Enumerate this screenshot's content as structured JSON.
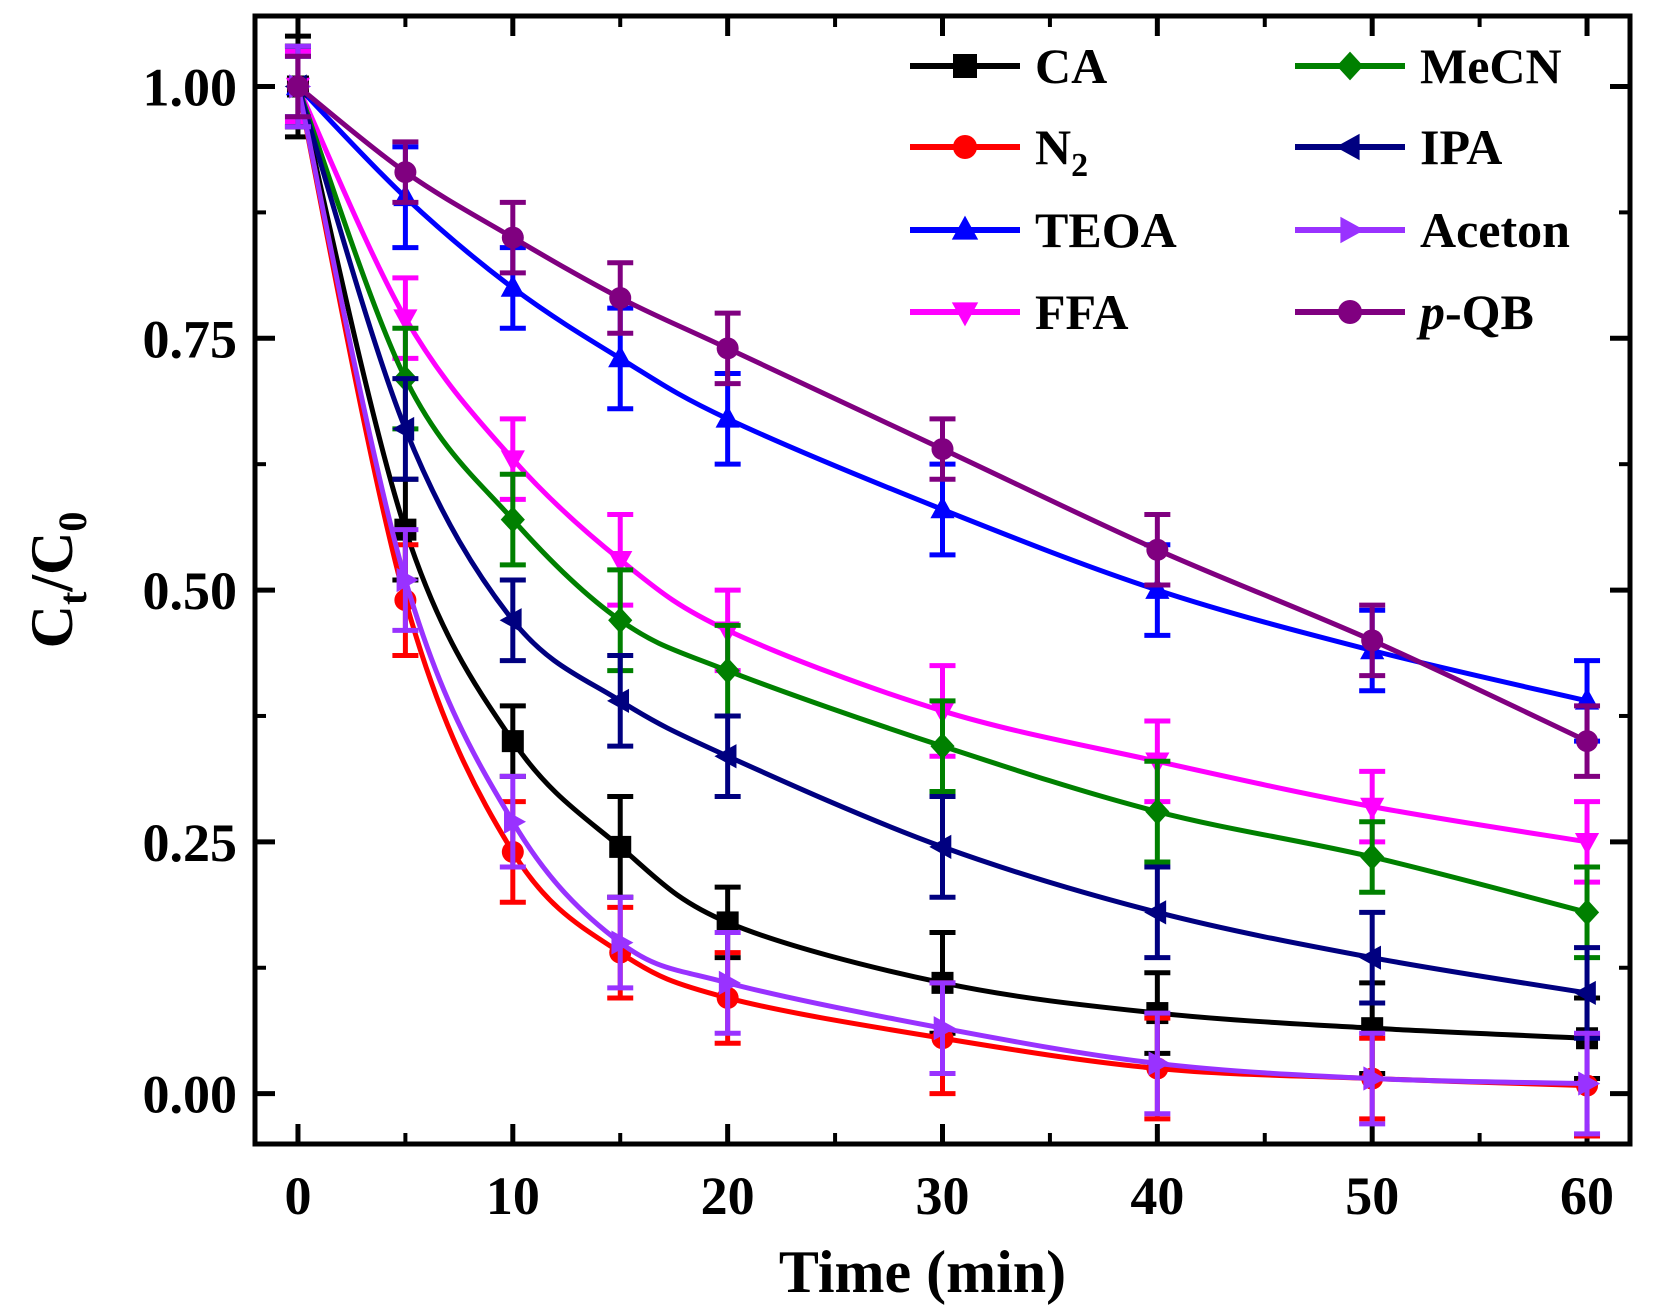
{
  "chart_data": {
    "type": "line",
    "title": "",
    "xlabel": "Time (min)",
    "ylabel": {
      "main": "C",
      "sub1": "t",
      "sep": "/C",
      "sub2": "0"
    },
    "xlim": [
      -2,
      62
    ],
    "ylim": [
      -0.05,
      1.07
    ],
    "x_ticks": [
      0,
      10,
      20,
      30,
      40,
      50,
      60
    ],
    "y_ticks": [
      0.0,
      0.25,
      0.5,
      0.75,
      1.0
    ],
    "x_tick_labels": [
      "0",
      "10",
      "20",
      "30",
      "40",
      "50",
      "60"
    ],
    "y_tick_labels": [
      "0.00",
      "0.25",
      "0.50",
      "0.75",
      "1.00"
    ],
    "x": [
      0,
      5,
      10,
      15,
      20,
      30,
      40,
      50,
      60
    ],
    "legend_placement": "top-right, two columns",
    "grid": false,
    "series": [
      {
        "name": "CA",
        "color": "#000000",
        "marker": "square",
        "values": [
          1.0,
          0.56,
          0.35,
          0.245,
          0.17,
          0.11,
          0.08,
          0.065,
          0.055
        ],
        "errors": [
          0.05,
          0.05,
          0.035,
          0.05,
          0.035,
          0.05,
          0.04,
          0.045,
          0.04
        ]
      },
      {
        "name": "N",
        "name_sub": "2",
        "color": "#ff0000",
        "marker": "circle",
        "values": [
          1.0,
          0.49,
          0.24,
          0.14,
          0.095,
          0.055,
          0.025,
          0.015,
          0.008
        ],
        "errors": [
          0.04,
          0.055,
          0.05,
          0.045,
          0.045,
          0.055,
          0.05,
          0.04,
          0.05
        ]
      },
      {
        "name": "TEOA",
        "color": "#0000ff",
        "marker": "triangle-up",
        "values": [
          1.0,
          0.89,
          0.8,
          0.73,
          0.67,
          0.58,
          0.5,
          0.44,
          0.39
        ],
        "errors": [
          0.03,
          0.05,
          0.04,
          0.05,
          0.045,
          0.045,
          0.045,
          0.04,
          0.04
        ]
      },
      {
        "name": "FFA",
        "color": "#ff00ff",
        "marker": "triangle-down",
        "values": [
          1.0,
          0.77,
          0.63,
          0.53,
          0.46,
          0.38,
          0.33,
          0.285,
          0.25
        ],
        "errors": [
          0.035,
          0.04,
          0.04,
          0.045,
          0.04,
          0.045,
          0.04,
          0.035,
          0.04
        ]
      },
      {
        "name": "MeCN",
        "color": "#008000",
        "marker": "diamond",
        "values": [
          1.0,
          0.71,
          0.57,
          0.47,
          0.42,
          0.345,
          0.28,
          0.235,
          0.18
        ],
        "errors": [
          0.04,
          0.05,
          0.045,
          0.05,
          0.045,
          0.045,
          0.05,
          0.035,
          0.045
        ]
      },
      {
        "name": "IPA",
        "color": "#000080",
        "marker": "triangle-left",
        "values": [
          1.0,
          0.66,
          0.47,
          0.39,
          0.335,
          0.245,
          0.18,
          0.135,
          0.1
        ],
        "errors": [
          0.04,
          0.05,
          0.04,
          0.045,
          0.04,
          0.05,
          0.045,
          0.045,
          0.045
        ]
      },
      {
        "name": "Aceton",
        "color": "#9932ff",
        "marker": "triangle-right",
        "values": [
          1.0,
          0.51,
          0.27,
          0.15,
          0.11,
          0.065,
          0.03,
          0.015,
          0.01
        ],
        "errors": [
          0.04,
          0.05,
          0.045,
          0.045,
          0.05,
          0.045,
          0.05,
          0.045,
          0.05
        ]
      },
      {
        "name": "p",
        "name_suffix": "-QB",
        "color": "#800080",
        "marker": "circle",
        "values": [
          1.0,
          0.915,
          0.85,
          0.79,
          0.74,
          0.64,
          0.54,
          0.45,
          0.35
        ],
        "errors": [
          0.03,
          0.03,
          0.035,
          0.035,
          0.035,
          0.03,
          0.035,
          0.035,
          0.035
        ]
      }
    ]
  }
}
